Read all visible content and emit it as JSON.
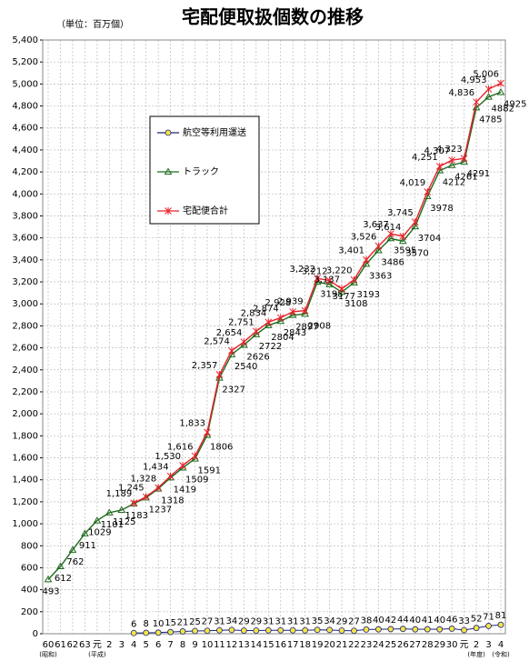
{
  "chart_data": {
    "type": "line",
    "title": "宅配便取扱個数の推移",
    "subtitle": "（単位：百万個）",
    "categories": [
      "60",
      "61",
      "62",
      "63",
      "元",
      "2",
      "3",
      "4",
      "5",
      "6",
      "7",
      "8",
      "9",
      "10",
      "11",
      "12",
      "13",
      "14",
      "15",
      "16",
      "17",
      "18",
      "19",
      "20",
      "21",
      "22",
      "23",
      "24",
      "25",
      "26",
      "27",
      "28",
      "29",
      "30",
      "元",
      "2",
      "3",
      "4"
    ],
    "era_labels": [
      "(昭和)",
      "(平成)",
      "(年度)",
      "(令和)"
    ],
    "series": [
      {
        "name": "航空等利用運送",
        "color": "#f5e642",
        "values": [
          null,
          null,
          null,
          null,
          null,
          null,
          null,
          6,
          8,
          10,
          15,
          21,
          25,
          27,
          31,
          34,
          29,
          29,
          31,
          31,
          31,
          31,
          35,
          34,
          29,
          27,
          38,
          40,
          42,
          44,
          40,
          41,
          40,
          46,
          33,
          52,
          71,
          81
        ]
      },
      {
        "name": "トラック",
        "color": "#1e6b1e",
        "values": [
          493,
          612,
          762,
          911,
          1029,
          1101,
          1125,
          1183,
          1237,
          1318,
          1419,
          1509,
          1591,
          1806,
          2327,
          2540,
          2626,
          2722,
          2804,
          2843,
          2897,
          2908,
          3198,
          3177,
          3108,
          3193,
          3363,
          3486,
          3595,
          3570,
          3704,
          3978,
          4212,
          4261,
          4291,
          4785,
          4882,
          4925
        ]
      },
      {
        "name": "宅配便合計",
        "color": "#e8222a",
        "values": [
          null,
          null,
          null,
          null,
          null,
          null,
          null,
          1189,
          1245,
          1328,
          1434,
          1530,
          1616,
          1833,
          2357,
          2574,
          2654,
          2751,
          2834,
          2874,
          2928,
          2939,
          3232,
          3212,
          3137,
          3220,
          3401,
          3526,
          3637,
          3614,
          3745,
          4019,
          4251,
          4307,
          4323,
          4836,
          4953,
          5006
        ],
        "value_labels": [
          null,
          null,
          null,
          null,
          null,
          null,
          null,
          "1,189",
          "1,245",
          "1,328",
          "1,434",
          "1,530",
          "1,616",
          "1,833",
          "2,357",
          "2,574",
          "2,654",
          "2,751",
          "2,834",
          "2,874",
          "2,928",
          "2,939",
          "3,232",
          "3,212",
          "3,137",
          "3,220",
          "3,401",
          "3,526",
          "3,637",
          "3,614",
          "3,745",
          "4,019",
          "4,251",
          "4,307",
          "4,323",
          "4,836",
          "4,953",
          "5,006"
        ]
      }
    ],
    "ylim": [
      0,
      5400
    ],
    "yticks": [
      0,
      200,
      400,
      600,
      800,
      {
        "value": 1000,
        "label": "1,000"
      },
      {
        "value": 1200,
        "label": "1,200"
      },
      {
        "value": 1400,
        "label": "1,400"
      },
      {
        "value": 1600,
        "label": "1,600"
      },
      {
        "value": 1800,
        "label": "1,800"
      },
      {
        "value": 2000,
        "label": "2,000"
      },
      {
        "value": 2200,
        "label": "2,200"
      },
      {
        "value": 2400,
        "label": "2,400"
      },
      {
        "value": 2600,
        "label": "2,600"
      },
      {
        "value": 2800,
        "label": "2,800"
      },
      {
        "value": 3000,
        "label": "3,000"
      },
      {
        "value": 3200,
        "label": "3,200"
      },
      {
        "value": 3400,
        "label": "3,400"
      },
      {
        "value": 3600,
        "label": "3,600"
      },
      {
        "value": 3800,
        "label": "3,800"
      },
      {
        "value": 4000,
        "label": "4,000"
      },
      {
        "value": 4200,
        "label": "4,200"
      },
      {
        "value": 4400,
        "label": "4,400"
      },
      {
        "value": 4600,
        "label": "4,600"
      },
      {
        "value": 4800,
        "label": "4,800"
      },
      {
        "value": 5000,
        "label": "5,000"
      },
      {
        "value": 5200,
        "label": "5,200"
      },
      {
        "value": 5400,
        "label": "5,400"
      }
    ],
    "grid": true
  }
}
